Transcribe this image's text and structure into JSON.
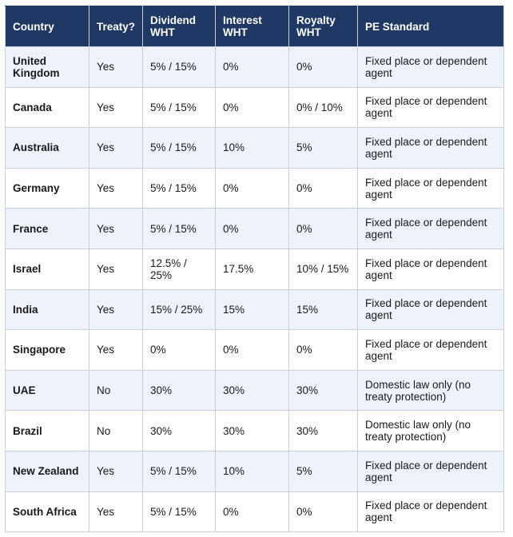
{
  "headers": {
    "country": "Country",
    "treaty": "Treaty?",
    "dividend": "Dividend WHT",
    "interest": "Interest WHT",
    "royalty": "Royalty WHT",
    "pe": "PE Standard"
  },
  "rows": [
    {
      "country": "United Kingdom",
      "treaty": "Yes",
      "dividend": "5% / 15%",
      "interest": "0%",
      "royalty": "0%",
      "pe": "Fixed place or dependent agent"
    },
    {
      "country": "Canada",
      "treaty": "Yes",
      "dividend": "5% / 15%",
      "interest": "0%",
      "royalty": "0% / 10%",
      "pe": "Fixed place or dependent agent"
    },
    {
      "country": "Australia",
      "treaty": "Yes",
      "dividend": "5% / 15%",
      "interest": "10%",
      "royalty": "5%",
      "pe": "Fixed place or dependent agent"
    },
    {
      "country": "Germany",
      "treaty": "Yes",
      "dividend": "5% / 15%",
      "interest": "0%",
      "royalty": "0%",
      "pe": "Fixed place or dependent agent"
    },
    {
      "country": "France",
      "treaty": "Yes",
      "dividend": "5% / 15%",
      "interest": "0%",
      "royalty": "0%",
      "pe": "Fixed place or dependent agent"
    },
    {
      "country": "Israel",
      "treaty": "Yes",
      "dividend": "12.5% / 25%",
      "interest": "17.5%",
      "royalty": "10% / 15%",
      "pe": "Fixed place or dependent agent"
    },
    {
      "country": "India",
      "treaty": "Yes",
      "dividend": "15% / 25%",
      "interest": "15%",
      "royalty": "15%",
      "pe": "Fixed place or dependent agent"
    },
    {
      "country": "Singapore",
      "treaty": "Yes",
      "dividend": "0%",
      "interest": "0%",
      "royalty": "0%",
      "pe": "Fixed place or dependent agent"
    },
    {
      "country": "UAE",
      "treaty": "No",
      "dividend": "30%",
      "interest": "30%",
      "royalty": "30%",
      "pe": "Domestic law only (no treaty protection)"
    },
    {
      "country": "Brazil",
      "treaty": "No",
      "dividend": "30%",
      "interest": "30%",
      "royalty": "30%",
      "pe": "Domestic law only (no treaty protection)"
    },
    {
      "country": "New Zealand",
      "treaty": "Yes",
      "dividend": "5% / 15%",
      "interest": "10%",
      "royalty": "5%",
      "pe": "Fixed place or dependent agent"
    },
    {
      "country": "South Africa",
      "treaty": "Yes",
      "dividend": "5% / 15%",
      "interest": "0%",
      "royalty": "0%",
      "pe": "Fixed place or dependent agent"
    }
  ]
}
